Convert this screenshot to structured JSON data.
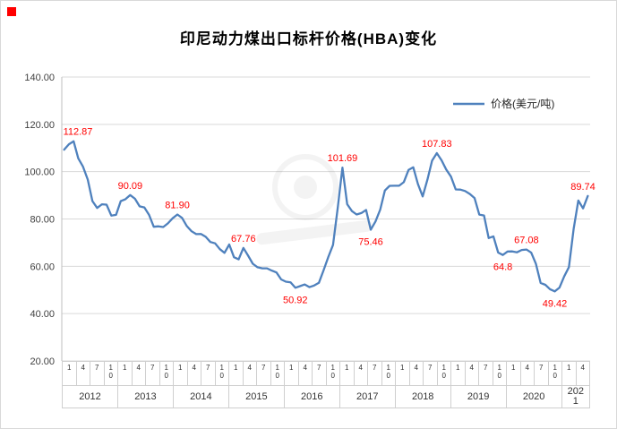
{
  "window": {
    "corner_mark_color": "#ff0000"
  },
  "chart_data": {
    "type": "line",
    "title": "印尼动力煤出口标杆价格(HBA)变化",
    "legend": "价格(美元/吨)",
    "legend_position": "top-right-inside",
    "series_color": "#4F81BD",
    "label_color": "#FF0000",
    "grid": true,
    "ylim": [
      20,
      140
    ],
    "y_ticks": [
      "140.00",
      "120.00",
      "100.00",
      "80.00",
      "60.00",
      "40.00",
      "20.00"
    ],
    "x_axis": {
      "ticks": [
        "1",
        "4",
        "7",
        "10",
        "1",
        "4",
        "7",
        "10",
        "1",
        "4",
        "7",
        "10",
        "1",
        "4",
        "7",
        "10",
        "1",
        "4",
        "7",
        "10",
        "1",
        "4",
        "7",
        "10",
        "1",
        "4",
        "7",
        "10",
        "1",
        "4",
        "7",
        "10",
        "1",
        "4",
        "7",
        "10",
        "1",
        "4"
      ],
      "years": [
        {
          "label": "2012",
          "span": 4
        },
        {
          "label": "2013",
          "span": 4
        },
        {
          "label": "2014",
          "span": 4
        },
        {
          "label": "2015",
          "span": 4
        },
        {
          "label": "2016",
          "span": 4
        },
        {
          "label": "2017",
          "span": 4
        },
        {
          "label": "2018",
          "span": 4
        },
        {
          "label": "2019",
          "span": 4
        },
        {
          "label": "2020",
          "span": 4
        },
        {
          "label": "2021",
          "span": 2,
          "wrap": true
        }
      ]
    },
    "series": [
      {
        "name": "价格(美元/吨)",
        "start": "2012-01",
        "freq": "monthly",
        "values": [
          109.29,
          111.58,
          112.87,
          105.61,
          102.12,
          96.65,
          87.56,
          84.65,
          86.21,
          86.04,
          81.44,
          81.75,
          87.55,
          88.35,
          90.09,
          88.56,
          85.33,
          84.87,
          81.69,
          76.7,
          76.89,
          76.61,
          78.13,
          80.31,
          81.9,
          80.44,
          77.01,
          74.81,
          73.6,
          73.64,
          72.45,
          70.29,
          69.69,
          67.26,
          65.7,
          69.23,
          63.84,
          62.92,
          67.76,
          64.48,
          61.08,
          59.59,
          59.16,
          59.14,
          58.21,
          57.39,
          54.43,
          53.51,
          53.2,
          50.92,
          51.62,
          52.32,
          51.2,
          51.87,
          53.0,
          58.37,
          63.93,
          69.07,
          84.89,
          101.69,
          86.23,
          83.32,
          81.9,
          82.51,
          83.81,
          75.46,
          78.95,
          83.97,
          92.03,
          93.99,
          94.04,
          94.04,
          95.54,
          100.69,
          101.86,
          94.75,
          89.53,
          96.61,
          104.65,
          107.83,
          104.81,
          100.89,
          97.9,
          92.51,
          92.41,
          91.8,
          90.57,
          88.85,
          81.86,
          81.48,
          71.92,
          72.67,
          65.79,
          64.8,
          66.27,
          66.3,
          65.93,
          66.89,
          67.08,
          65.77,
          61.11,
          52.98,
          52.16,
          50.34,
          49.42,
          51.0,
          55.71,
          59.65,
          75.84,
          87.79,
          84.45,
          89.74
        ]
      }
    ],
    "annotations": [
      {
        "index": 2,
        "text": "112.87",
        "position": "above"
      },
      {
        "index": 14,
        "text": "90.09",
        "position": "above"
      },
      {
        "index": 24,
        "text": "81.90",
        "position": "above"
      },
      {
        "index": 38,
        "text": "67.76",
        "position": "above"
      },
      {
        "index": 49,
        "text": "50.92",
        "position": "below"
      },
      {
        "index": 59,
        "text": "101.69",
        "position": "above"
      },
      {
        "index": 65,
        "text": "75.46",
        "position": "below"
      },
      {
        "index": 79,
        "text": "107.83",
        "position": "above"
      },
      {
        "index": 93,
        "text": "64.8",
        "position": "below"
      },
      {
        "index": 98,
        "text": "67.08",
        "position": "above"
      },
      {
        "index": 104,
        "text": "49.42",
        "position": "below"
      },
      {
        "index": 111,
        "text": "89.74",
        "position": "above"
      }
    ]
  }
}
